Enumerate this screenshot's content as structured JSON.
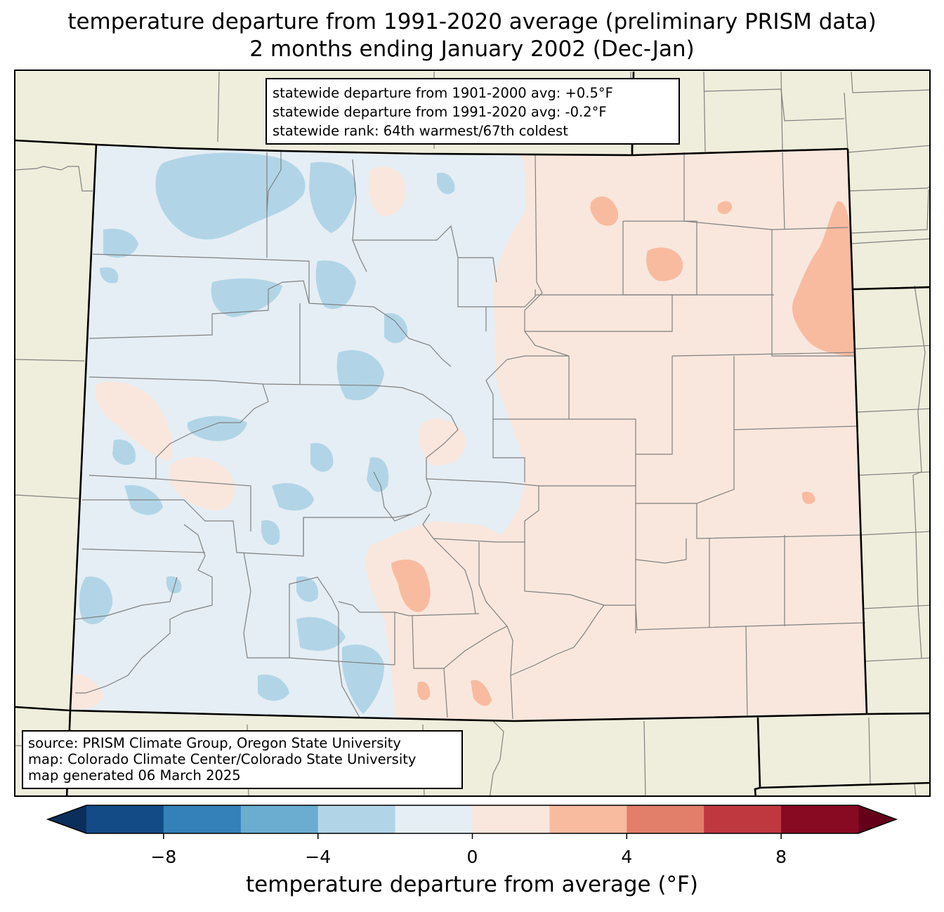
{
  "title_lines": [
    "temperature departure from 1991-2020 average (preliminary PRISM data)",
    "2 months ending January 2002 (Dec-Jan)"
  ],
  "stats_box": {
    "lines": [
      "statewide departure from 1901-2000 avg: +0.5°F",
      "statewide departure from 1991-2020 avg: -0.2°F",
      "statewide rank: 64th warmest/67th coldest"
    ]
  },
  "source_box": {
    "lines": [
      "source: PRISM Climate Group, Oregon State University",
      "map: Colorado Climate Center/Colorado State University",
      "map generated 06 March 2025"
    ]
  },
  "colorbar": {
    "label": "temperature departure from average (°F)",
    "range": [
      -10,
      10
    ],
    "bins": [
      {
        "min": -10,
        "max": -8,
        "color": "#134b87"
      },
      {
        "min": -8,
        "max": -6,
        "color": "#3480b9"
      },
      {
        "min": -6,
        "max": -4,
        "color": "#6bacd1"
      },
      {
        "min": -4,
        "max": -2,
        "color": "#b1d5e7"
      },
      {
        "min": -2,
        "max": 0,
        "color": "#e5eef4"
      },
      {
        "min": 0,
        "max": 2,
        "color": "#f9e7dd"
      },
      {
        "min": 2,
        "max": 4,
        "color": "#f8bba0"
      },
      {
        "min": 4,
        "max": 6,
        "color": "#e17f6a"
      },
      {
        "min": 6,
        "max": 8,
        "color": "#c0383f"
      },
      {
        "min": 8,
        "max": 10,
        "color": "#880a22"
      }
    ],
    "under_color": "#0a2f5c",
    "over_color": "#65001a",
    "ticks": [
      {
        "value": -8,
        "label": "−8"
      },
      {
        "value": -4,
        "label": "−4"
      },
      {
        "value": 0,
        "label": "0"
      },
      {
        "value": 4,
        "label": "4"
      },
      {
        "value": 8,
        "label": "8"
      }
    ]
  },
  "map_colors": {
    "background_land": "#efeedc",
    "state_border": "#000000",
    "county_line": "#808080",
    "neutral_cool": "#e5eef4",
    "light_blue": "#b1d5e7",
    "neutral_warm": "#f9e7dd",
    "light_red": "#f8bba0"
  }
}
